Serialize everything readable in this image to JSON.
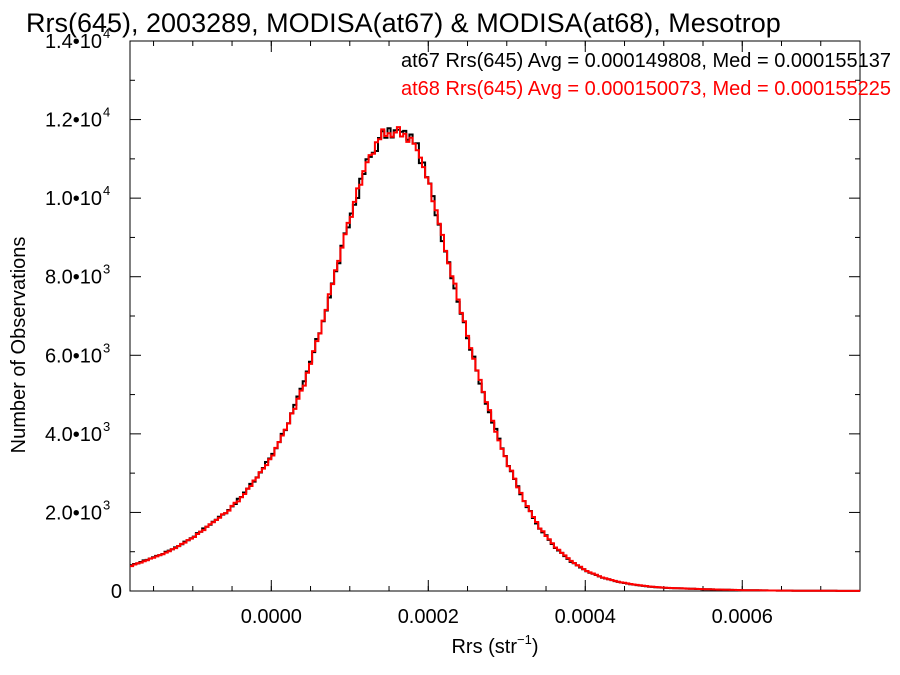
{
  "chart_data": {
    "type": "line",
    "title": "Rrs(645), 2003289, MODISA(at67) & MODISA(at68), Mesotrop",
    "xlabel": {
      "base": "Rrs (str",
      "exp": "−1",
      "tail": ")"
    },
    "ylabel": "Number of Observations",
    "xlim": [
      -0.00018,
      0.00075
    ],
    "ylim": [
      0,
      14000
    ],
    "grid": false,
    "legend_position": "top-right",
    "x_ticks": [
      {
        "value": 0.0,
        "label": "0.0000"
      },
      {
        "value": 0.0002,
        "label": "0.0002"
      },
      {
        "value": 0.0004,
        "label": "0.0004"
      },
      {
        "value": 0.0006,
        "label": "0.0006"
      }
    ],
    "y_ticks": [
      {
        "value": 0,
        "mantissa": "0",
        "exp": ""
      },
      {
        "value": 2000,
        "mantissa": "2.0•10",
        "exp": "3"
      },
      {
        "value": 4000,
        "mantissa": "4.0•10",
        "exp": "3"
      },
      {
        "value": 6000,
        "mantissa": "6.0•10",
        "exp": "3"
      },
      {
        "value": 8000,
        "mantissa": "8.0•10",
        "exp": "3"
      },
      {
        "value": 10000,
        "mantissa": "1.0•10",
        "exp": "4"
      },
      {
        "value": 12000,
        "mantissa": "1.2•10",
        "exp": "4"
      },
      {
        "value": 14000,
        "mantissa": "1.4•10",
        "exp": "4"
      }
    ],
    "series": [
      {
        "name": "at67 Rrs(645) Avg = 0.000149808, Med = 0.000155137",
        "color": "#000000",
        "x": [
          -0.00018,
          -0.00016,
          -0.00014,
          -0.00012,
          -0.0001,
          -8e-05,
          -6e-05,
          -4e-05,
          -2e-05,
          0.0,
          2e-05,
          4e-05,
          6e-05,
          8e-05,
          0.0001,
          0.00012,
          0.00014,
          0.00016,
          0.00018,
          0.0002,
          0.00022,
          0.00024,
          0.00026,
          0.00028,
          0.0003,
          0.00032,
          0.00034,
          0.00036,
          0.00038,
          0.0004,
          0.00042,
          0.00044,
          0.00046,
          0.00048,
          0.0005,
          0.00055,
          0.0006,
          0.00065,
          0.0007,
          0.00075
        ],
        "y": [
          650,
          800,
          950,
          1150,
          1400,
          1700,
          2000,
          2400,
          2900,
          3500,
          4300,
          5300,
          6600,
          8100,
          9600,
          10900,
          11600,
          11700,
          11500,
          10300,
          8700,
          7100,
          5600,
          4300,
          3200,
          2300,
          1600,
          1100,
          750,
          500,
          340,
          230,
          160,
          110,
          80,
          45,
          20,
          10,
          5,
          2
        ]
      },
      {
        "name": "at68 Rrs(645) Avg = 0.000150073, Med = 0.000155225",
        "color": "#ff0000",
        "x": [
          -0.00018,
          -0.00016,
          -0.00014,
          -0.00012,
          -0.0001,
          -8e-05,
          -6e-05,
          -4e-05,
          -2e-05,
          0.0,
          2e-05,
          4e-05,
          6e-05,
          8e-05,
          0.0001,
          0.00012,
          0.00014,
          0.00016,
          0.00018,
          0.0002,
          0.00022,
          0.00024,
          0.00026,
          0.00028,
          0.0003,
          0.00032,
          0.00034,
          0.00036,
          0.00038,
          0.0004,
          0.00042,
          0.00044,
          0.00046,
          0.00048,
          0.0005,
          0.00055,
          0.0006,
          0.00065,
          0.0007,
          0.00075
        ],
        "y": [
          640,
          790,
          940,
          1140,
          1390,
          1690,
          1990,
          2390,
          2880,
          3480,
          4280,
          5290,
          6610,
          8100,
          9620,
          10920,
          11620,
          11710,
          11480,
          10280,
          8690,
          7110,
          5610,
          4310,
          3210,
          2310,
          1610,
          1110,
          760,
          510,
          345,
          235,
          165,
          115,
          82,
          46,
          21,
          10,
          5,
          2
        ]
      }
    ]
  }
}
